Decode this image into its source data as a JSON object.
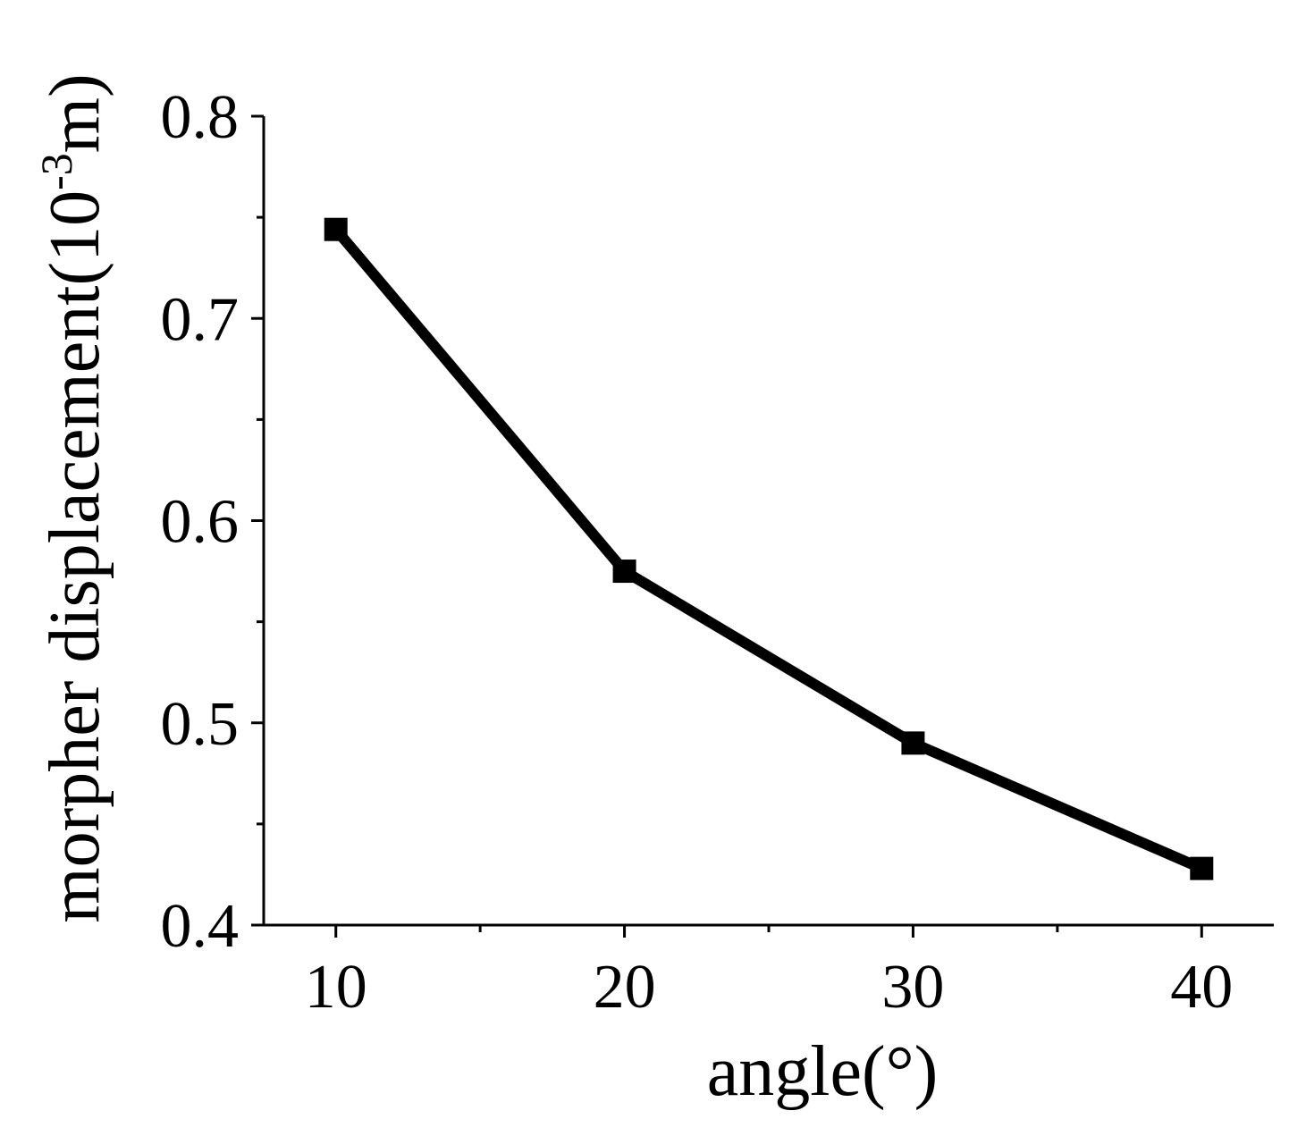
{
  "chart_data": {
    "type": "line",
    "xlabel": "angle(°)",
    "ylabel": {
      "prefix": "morpher displacement(10",
      "superscript": "-3",
      "suffix": "m)"
    },
    "xlim": [
      7.5,
      42.5
    ],
    "ylim": [
      0.4,
      0.8
    ],
    "x_ticks": [
      10,
      20,
      30,
      40
    ],
    "x_tick_labels": [
      "10",
      "20",
      "30",
      "40"
    ],
    "x_minor_ticks": [
      15,
      25,
      35
    ],
    "y_ticks": [
      0.4,
      0.5,
      0.6,
      0.7,
      0.8
    ],
    "y_tick_labels": [
      "0.4",
      "0.5",
      "0.6",
      "0.7",
      "0.8"
    ],
    "y_minor_ticks": [
      0.45,
      0.55,
      0.65,
      0.75
    ],
    "grid": false,
    "series": [
      {
        "marker": "square",
        "color": "#000000",
        "x": [
          10,
          20,
          30,
          40
        ],
        "y": [
          0.744,
          0.575,
          0.49,
          0.428
        ]
      }
    ]
  }
}
